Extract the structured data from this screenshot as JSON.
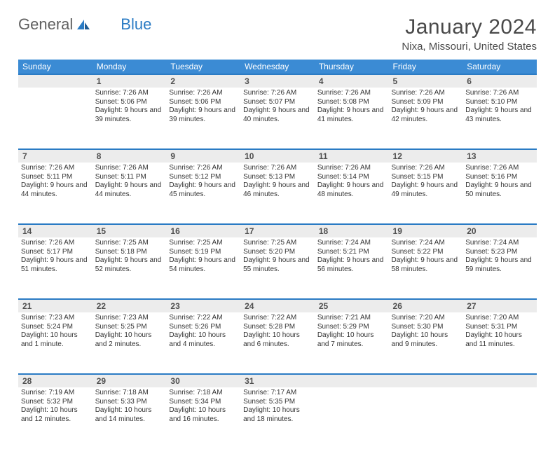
{
  "brand": {
    "part1": "General",
    "part2": "Blue"
  },
  "title": "January 2024",
  "location": "Nixa, Missouri, United States",
  "colors": {
    "header_bg": "#3b8bd4",
    "accent_line": "#2a7bc4",
    "daynum_bg": "#ececec",
    "text": "#333333"
  },
  "weekdays": [
    "Sunday",
    "Monday",
    "Tuesday",
    "Wednesday",
    "Thursday",
    "Friday",
    "Saturday"
  ],
  "weeks": [
    {
      "nums": [
        "",
        "1",
        "2",
        "3",
        "4",
        "5",
        "6"
      ],
      "cells": [
        null,
        {
          "sunrise": "Sunrise: 7:26 AM",
          "sunset": "Sunset: 5:06 PM",
          "daylight": "Daylight: 9 hours and 39 minutes."
        },
        {
          "sunrise": "Sunrise: 7:26 AM",
          "sunset": "Sunset: 5:06 PM",
          "daylight": "Daylight: 9 hours and 39 minutes."
        },
        {
          "sunrise": "Sunrise: 7:26 AM",
          "sunset": "Sunset: 5:07 PM",
          "daylight": "Daylight: 9 hours and 40 minutes."
        },
        {
          "sunrise": "Sunrise: 7:26 AM",
          "sunset": "Sunset: 5:08 PM",
          "daylight": "Daylight: 9 hours and 41 minutes."
        },
        {
          "sunrise": "Sunrise: 7:26 AM",
          "sunset": "Sunset: 5:09 PM",
          "daylight": "Daylight: 9 hours and 42 minutes."
        },
        {
          "sunrise": "Sunrise: 7:26 AM",
          "sunset": "Sunset: 5:10 PM",
          "daylight": "Daylight: 9 hours and 43 minutes."
        }
      ]
    },
    {
      "nums": [
        "7",
        "8",
        "9",
        "10",
        "11",
        "12",
        "13"
      ],
      "cells": [
        {
          "sunrise": "Sunrise: 7:26 AM",
          "sunset": "Sunset: 5:11 PM",
          "daylight": "Daylight: 9 hours and 44 minutes."
        },
        {
          "sunrise": "Sunrise: 7:26 AM",
          "sunset": "Sunset: 5:11 PM",
          "daylight": "Daylight: 9 hours and 44 minutes."
        },
        {
          "sunrise": "Sunrise: 7:26 AM",
          "sunset": "Sunset: 5:12 PM",
          "daylight": "Daylight: 9 hours and 45 minutes."
        },
        {
          "sunrise": "Sunrise: 7:26 AM",
          "sunset": "Sunset: 5:13 PM",
          "daylight": "Daylight: 9 hours and 46 minutes."
        },
        {
          "sunrise": "Sunrise: 7:26 AM",
          "sunset": "Sunset: 5:14 PM",
          "daylight": "Daylight: 9 hours and 48 minutes."
        },
        {
          "sunrise": "Sunrise: 7:26 AM",
          "sunset": "Sunset: 5:15 PM",
          "daylight": "Daylight: 9 hours and 49 minutes."
        },
        {
          "sunrise": "Sunrise: 7:26 AM",
          "sunset": "Sunset: 5:16 PM",
          "daylight": "Daylight: 9 hours and 50 minutes."
        }
      ]
    },
    {
      "nums": [
        "14",
        "15",
        "16",
        "17",
        "18",
        "19",
        "20"
      ],
      "cells": [
        {
          "sunrise": "Sunrise: 7:26 AM",
          "sunset": "Sunset: 5:17 PM",
          "daylight": "Daylight: 9 hours and 51 minutes."
        },
        {
          "sunrise": "Sunrise: 7:25 AM",
          "sunset": "Sunset: 5:18 PM",
          "daylight": "Daylight: 9 hours and 52 minutes."
        },
        {
          "sunrise": "Sunrise: 7:25 AM",
          "sunset": "Sunset: 5:19 PM",
          "daylight": "Daylight: 9 hours and 54 minutes."
        },
        {
          "sunrise": "Sunrise: 7:25 AM",
          "sunset": "Sunset: 5:20 PM",
          "daylight": "Daylight: 9 hours and 55 minutes."
        },
        {
          "sunrise": "Sunrise: 7:24 AM",
          "sunset": "Sunset: 5:21 PM",
          "daylight": "Daylight: 9 hours and 56 minutes."
        },
        {
          "sunrise": "Sunrise: 7:24 AM",
          "sunset": "Sunset: 5:22 PM",
          "daylight": "Daylight: 9 hours and 58 minutes."
        },
        {
          "sunrise": "Sunrise: 7:24 AM",
          "sunset": "Sunset: 5:23 PM",
          "daylight": "Daylight: 9 hours and 59 minutes."
        }
      ]
    },
    {
      "nums": [
        "21",
        "22",
        "23",
        "24",
        "25",
        "26",
        "27"
      ],
      "cells": [
        {
          "sunrise": "Sunrise: 7:23 AM",
          "sunset": "Sunset: 5:24 PM",
          "daylight": "Daylight: 10 hours and 1 minute."
        },
        {
          "sunrise": "Sunrise: 7:23 AM",
          "sunset": "Sunset: 5:25 PM",
          "daylight": "Daylight: 10 hours and 2 minutes."
        },
        {
          "sunrise": "Sunrise: 7:22 AM",
          "sunset": "Sunset: 5:26 PM",
          "daylight": "Daylight: 10 hours and 4 minutes."
        },
        {
          "sunrise": "Sunrise: 7:22 AM",
          "sunset": "Sunset: 5:28 PM",
          "daylight": "Daylight: 10 hours and 6 minutes."
        },
        {
          "sunrise": "Sunrise: 7:21 AM",
          "sunset": "Sunset: 5:29 PM",
          "daylight": "Daylight: 10 hours and 7 minutes."
        },
        {
          "sunrise": "Sunrise: 7:20 AM",
          "sunset": "Sunset: 5:30 PM",
          "daylight": "Daylight: 10 hours and 9 minutes."
        },
        {
          "sunrise": "Sunrise: 7:20 AM",
          "sunset": "Sunset: 5:31 PM",
          "daylight": "Daylight: 10 hours and 11 minutes."
        }
      ]
    },
    {
      "nums": [
        "28",
        "29",
        "30",
        "31",
        "",
        "",
        ""
      ],
      "cells": [
        {
          "sunrise": "Sunrise: 7:19 AM",
          "sunset": "Sunset: 5:32 PM",
          "daylight": "Daylight: 10 hours and 12 minutes."
        },
        {
          "sunrise": "Sunrise: 7:18 AM",
          "sunset": "Sunset: 5:33 PM",
          "daylight": "Daylight: 10 hours and 14 minutes."
        },
        {
          "sunrise": "Sunrise: 7:18 AM",
          "sunset": "Sunset: 5:34 PM",
          "daylight": "Daylight: 10 hours and 16 minutes."
        },
        {
          "sunrise": "Sunrise: 7:17 AM",
          "sunset": "Sunset: 5:35 PM",
          "daylight": "Daylight: 10 hours and 18 minutes."
        },
        null,
        null,
        null
      ]
    }
  ]
}
